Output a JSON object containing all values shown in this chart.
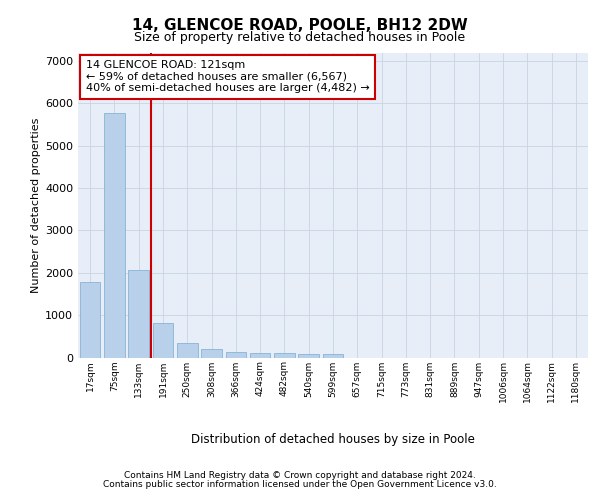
{
  "title": "14, GLENCOE ROAD, POOLE, BH12 2DW",
  "subtitle": "Size of property relative to detached houses in Poole",
  "xlabel": "Distribution of detached houses by size in Poole",
  "ylabel": "Number of detached properties",
  "bar_color": "#b8d0ea",
  "bar_edge_color": "#7aabcf",
  "grid_color": "#c8d4e4",
  "background_color": "#e8eef8",
  "vline_color": "#cc0000",
  "annotation_text": "14 GLENCOE ROAD: 121sqm\n← 59% of detached houses are smaller (6,567)\n40% of semi-detached houses are larger (4,482) →",
  "annotation_box_facecolor": "#ffffff",
  "annotation_box_edgecolor": "#cc0000",
  "categories": [
    "17sqm",
    "75sqm",
    "133sqm",
    "191sqm",
    "250sqm",
    "308sqm",
    "366sqm",
    "424sqm",
    "482sqm",
    "540sqm",
    "599sqm",
    "657sqm",
    "715sqm",
    "773sqm",
    "831sqm",
    "889sqm",
    "947sqm",
    "1006sqm",
    "1064sqm",
    "1122sqm",
    "1180sqm"
  ],
  "values": [
    1780,
    5780,
    2060,
    820,
    340,
    195,
    130,
    110,
    95,
    85,
    75,
    0,
    0,
    0,
    0,
    0,
    0,
    0,
    0,
    0,
    0
  ],
  "vline_bar_index": 2,
  "ylim": [
    0,
    7200
  ],
  "yticks": [
    0,
    1000,
    2000,
    3000,
    4000,
    5000,
    6000,
    7000
  ],
  "footer_line1": "Contains HM Land Registry data © Crown copyright and database right 2024.",
  "footer_line2": "Contains public sector information licensed under the Open Government Licence v3.0."
}
